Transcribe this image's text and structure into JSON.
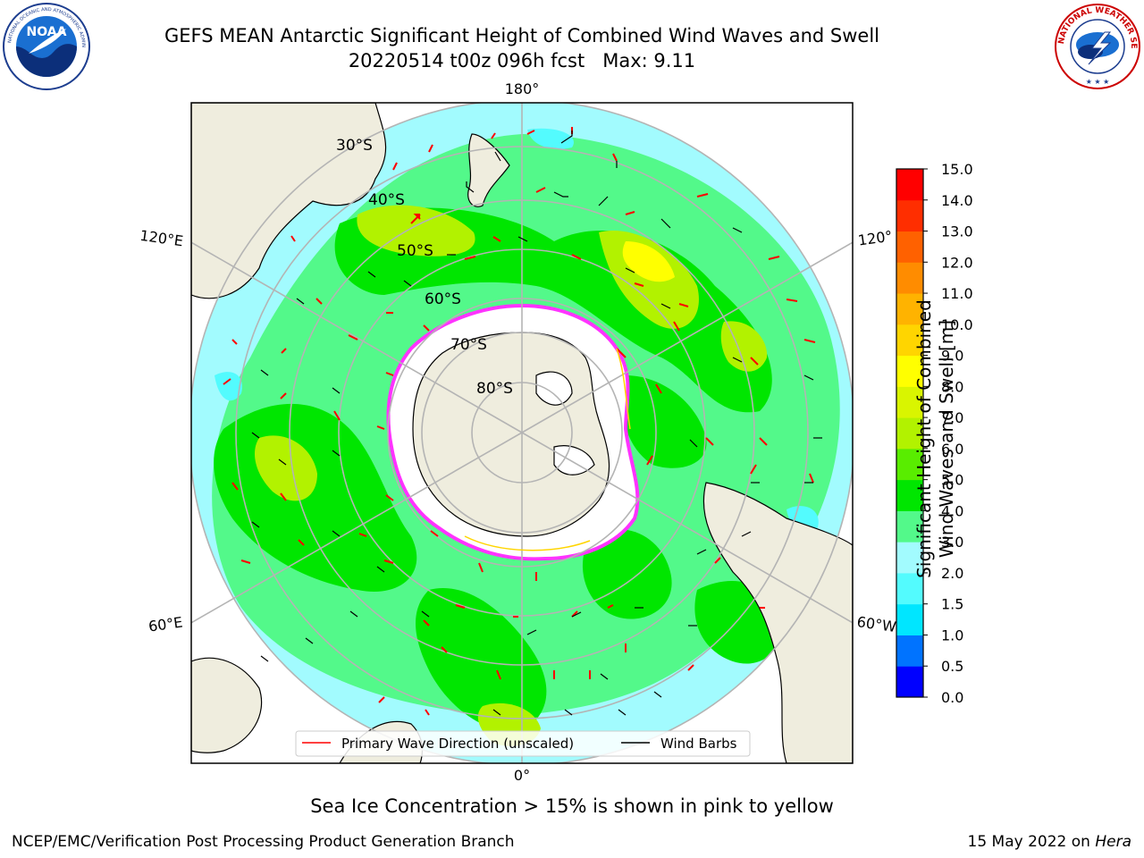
{
  "title": {
    "line1": "GEFS MEAN Antarctic Significant Height of Combined Wind Waves and Swell",
    "line2": "20220514 t00z 096h fcst   Max: 9.11"
  },
  "logos": {
    "left": {
      "icon": "noaa-logo",
      "text": "NOAA",
      "ring_text": "NATIONAL OCEANIC AND ATMOSPHERIC ADMINISTRATION · U.S. DEPARTMENT OF COMMERCE"
    },
    "right": {
      "icon": "nws-logo",
      "ring_text": "NATIONAL WEATHER SERVICE"
    }
  },
  "map": {
    "projection": "south-polar-stereographic",
    "longitude_labels": {
      "top": "180°",
      "bottom": "0°",
      "left_upper": "120°E",
      "left_lower": "60°E",
      "right_upper": "120°",
      "right_lower": "60°W"
    },
    "latitude_labels": [
      "30°S",
      "40°S",
      "50°S",
      "60°S",
      "70°S",
      "80°S"
    ],
    "colors": {
      "land": "#efedde",
      "coast": "#000000",
      "ocean_low": "#a2fbfe",
      "ocean_mid": "#53f98a",
      "ocean_high": "#00e600",
      "wave_arrow": "#ff0000",
      "sea_ice": "#ff33ff",
      "graticule": "#b4b4b4"
    }
  },
  "legend": {
    "wave_label": "Primary Wave Direction (unscaled)",
    "barb_label": "Wind Barbs"
  },
  "colorbar": {
    "label_line1": "Significant Height of Combined",
    "label_line2": "Wind Waves and Swell [m]",
    "ticks": [
      "0.0",
      "0.5",
      "1.0",
      "1.5",
      "2.0",
      "3.0",
      "4.0",
      "5.0",
      "6.0",
      "7.0",
      "8.0",
      "9.0",
      "10.0",
      "11.0",
      "12.0",
      "13.0",
      "14.0",
      "15.0"
    ],
    "colors": [
      "#0000ff",
      "#0073ff",
      "#00e6ff",
      "#53fbfe",
      "#a2fbfe",
      "#53f98a",
      "#00e600",
      "#59ed00",
      "#b2f200",
      "#d9f500",
      "#ffff00",
      "#ffd500",
      "#ffb300",
      "#ff8c00",
      "#ff6100",
      "#ff2e00",
      "#ff0000"
    ]
  },
  "footer": {
    "note": "Sea Ice Concentration > 15% is shown in pink to yellow",
    "left": "NCEP/EMC/Verification Post Processing Product Generation Branch",
    "right_date": "15 May 2022 on",
    "right_host": "Hera"
  }
}
